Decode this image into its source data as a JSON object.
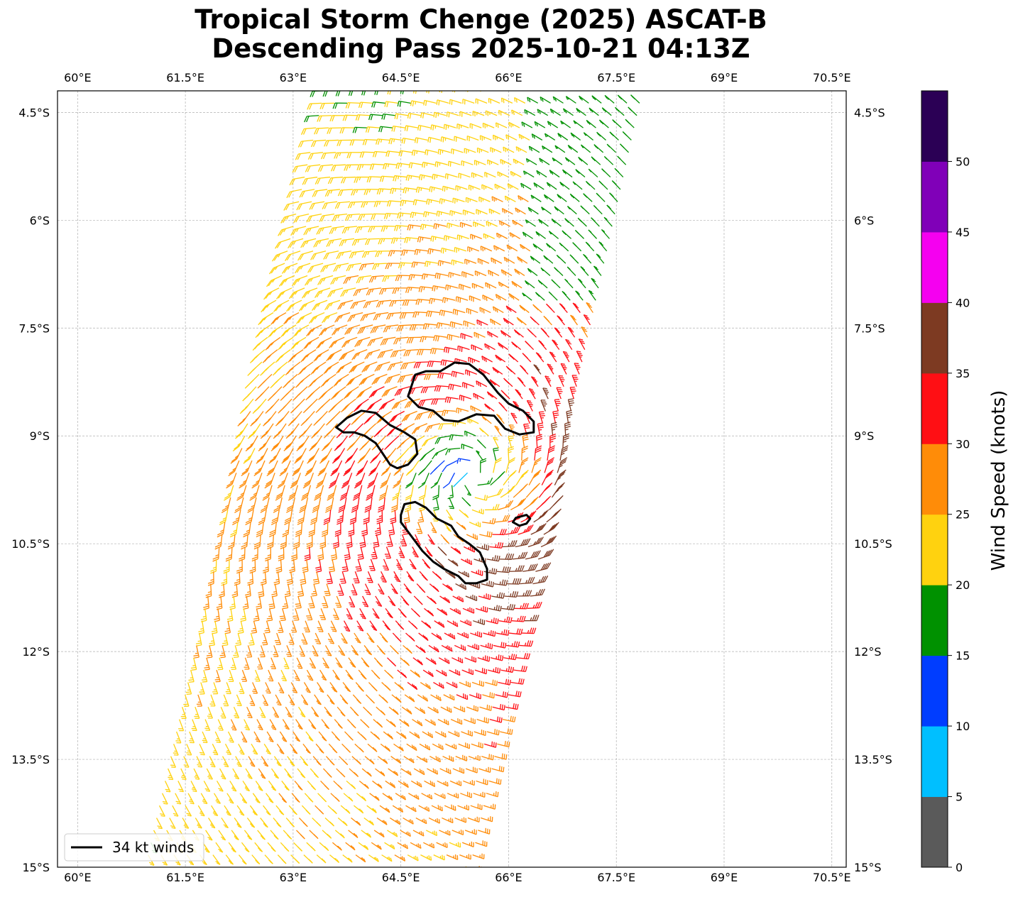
{
  "title": {
    "line1": "Tropical Storm Chenge (2025) ASCAT-B",
    "line2": "Descending Pass 2025-10-21 04:13Z"
  },
  "map": {
    "lon_range": [
      59.72,
      70.7
    ],
    "lat_range": [
      -15.0,
      -4.2
    ],
    "lon_ticks": [
      {
        "value": 60,
        "label": "60°E"
      },
      {
        "value": 61.5,
        "label": "61.5°E"
      },
      {
        "value": 63,
        "label": "63°E"
      },
      {
        "value": 64.5,
        "label": "64.5°E"
      },
      {
        "value": 66,
        "label": "66°E"
      },
      {
        "value": 67.5,
        "label": "67.5°E"
      },
      {
        "value": 69,
        "label": "69°E"
      },
      {
        "value": 70.5,
        "label": "70.5°E"
      }
    ],
    "lat_ticks": [
      {
        "value": -4.5,
        "label": "4.5°S"
      },
      {
        "value": -6,
        "label": "6°S"
      },
      {
        "value": -7.5,
        "label": "7.5°S"
      },
      {
        "value": -9,
        "label": "9°S"
      },
      {
        "value": -10.5,
        "label": "10.5°S"
      },
      {
        "value": -12,
        "label": "12°S"
      },
      {
        "value": -13.5,
        "label": "13.5°S"
      },
      {
        "value": -15,
        "label": "15°S"
      }
    ],
    "grid": true,
    "storm_center": {
      "lon": 65.5,
      "lat": -9.55
    },
    "swath": {
      "top": {
        "lat": -4.2,
        "lon_west": 63.35,
        "lon_east": 67.95
      },
      "bottom": {
        "lat": -15.0,
        "lon_west": 60.85,
        "lon_east": 65.55
      }
    },
    "contours_34kt": [
      [
        [
          64.6,
          -8.45
        ],
        [
          64.7,
          -8.15
        ],
        [
          64.85,
          -8.1
        ],
        [
          65.05,
          -8.1
        ],
        [
          65.25,
          -7.98
        ],
        [
          65.45,
          -8.0
        ],
        [
          65.65,
          -8.15
        ],
        [
          65.85,
          -8.4
        ],
        [
          66.0,
          -8.55
        ],
        [
          66.2,
          -8.65
        ],
        [
          66.35,
          -8.8
        ],
        [
          66.35,
          -8.95
        ],
        [
          66.15,
          -8.98
        ],
        [
          65.95,
          -8.9
        ],
        [
          65.8,
          -8.72
        ],
        [
          65.55,
          -8.7
        ],
        [
          65.3,
          -8.8
        ],
        [
          65.1,
          -8.78
        ],
        [
          64.95,
          -8.65
        ],
        [
          64.75,
          -8.6
        ],
        [
          64.6,
          -8.45
        ]
      ],
      [
        [
          63.6,
          -8.88
        ],
        [
          63.75,
          -8.75
        ],
        [
          63.95,
          -8.65
        ],
        [
          64.15,
          -8.68
        ],
        [
          64.35,
          -8.85
        ],
        [
          64.55,
          -8.95
        ],
        [
          64.7,
          -9.05
        ],
        [
          64.73,
          -9.25
        ],
        [
          64.6,
          -9.4
        ],
        [
          64.45,
          -9.45
        ],
        [
          64.35,
          -9.4
        ],
        [
          64.25,
          -9.25
        ],
        [
          64.15,
          -9.1
        ],
        [
          64.0,
          -9.0
        ],
        [
          63.85,
          -8.95
        ],
        [
          63.7,
          -8.95
        ],
        [
          63.6,
          -8.88
        ]
      ],
      [
        [
          64.5,
          -10.1
        ],
        [
          64.55,
          -9.95
        ],
        [
          64.7,
          -9.92
        ],
        [
          64.85,
          -10.0
        ],
        [
          65.0,
          -10.15
        ],
        [
          65.2,
          -10.25
        ],
        [
          65.3,
          -10.4
        ],
        [
          65.45,
          -10.5
        ],
        [
          65.6,
          -10.62
        ],
        [
          65.7,
          -10.85
        ],
        [
          65.7,
          -11.0
        ],
        [
          65.55,
          -11.05
        ],
        [
          65.4,
          -11.05
        ],
        [
          65.3,
          -10.95
        ],
        [
          65.1,
          -10.85
        ],
        [
          64.95,
          -10.75
        ],
        [
          64.8,
          -10.6
        ],
        [
          64.65,
          -10.4
        ],
        [
          64.5,
          -10.2
        ],
        [
          64.5,
          -10.1
        ]
      ],
      [
        [
          66.06,
          -10.2
        ],
        [
          66.1,
          -10.14
        ],
        [
          66.25,
          -10.1
        ],
        [
          66.3,
          -10.15
        ],
        [
          66.25,
          -10.22
        ],
        [
          66.15,
          -10.25
        ],
        [
          66.06,
          -10.2
        ]
      ]
    ]
  },
  "colorbar": {
    "label": "Wind Speed (knots)",
    "ticks": [
      "0",
      "5",
      "10",
      "15",
      "20",
      "25",
      "30",
      "35",
      "40",
      "45",
      "50"
    ],
    "range": [
      0,
      55
    ],
    "bins": [
      {
        "from": 0,
        "to": 5,
        "color": "#5a5a5a"
      },
      {
        "from": 5,
        "to": 10,
        "color": "#00bfff"
      },
      {
        "from": 10,
        "to": 15,
        "color": "#003dff"
      },
      {
        "from": 15,
        "to": 20,
        "color": "#009100"
      },
      {
        "from": 20,
        "to": 25,
        "color": "#ffd20f"
      },
      {
        "from": 25,
        "to": 30,
        "color": "#ff8c08"
      },
      {
        "from": 30,
        "to": 35,
        "color": "#ff0f14"
      },
      {
        "from": 35,
        "to": 40,
        "color": "#7d3a22"
      },
      {
        "from": 40,
        "to": 45,
        "color": "#f500f0"
      },
      {
        "from": 45,
        "to": 50,
        "color": "#8000b8"
      },
      {
        "from": 50,
        "to": 55,
        "color": "#2b0055"
      }
    ]
  },
  "legend": {
    "label": "34 kt winds",
    "position": "lower-left"
  }
}
